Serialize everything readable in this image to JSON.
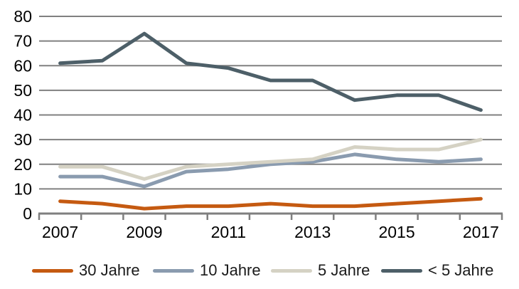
{
  "chart_data": {
    "type": "line",
    "title": "",
    "categories": [
      "2007",
      "2008",
      "2009",
      "2010",
      "2011",
      "2012",
      "2013",
      "2014",
      "2015",
      "2016",
      "2017"
    ],
    "x_axis_labels_shown": [
      "2007",
      "2009",
      "2011",
      "2013",
      "2015",
      "2017"
    ],
    "series": [
      {
        "name": "30 Jahre",
        "color": "#C55A11",
        "values": [
          5,
          4,
          2,
          3,
          3,
          4,
          3,
          3,
          4,
          5,
          6
        ]
      },
      {
        "name": "10 Jahre",
        "color": "#8A9BAF",
        "values": [
          15,
          15,
          11,
          17,
          18,
          20,
          21,
          24,
          22,
          21,
          22
        ]
      },
      {
        "name": "5 Jahre",
        "color": "#D5D2C4",
        "values": [
          19,
          19,
          14,
          19,
          20,
          21,
          22,
          27,
          26,
          26,
          30
        ]
      },
      {
        "name": "< 5 Jahre",
        "color": "#4D5F68",
        "values": [
          61,
          62,
          73,
          61,
          59,
          54,
          54,
          46,
          48,
          48,
          42
        ]
      }
    ],
    "ylim": [
      0,
      80
    ],
    "y_ticks": [
      0,
      10,
      20,
      30,
      40,
      50,
      60,
      70,
      80
    ],
    "grid": "horizontal",
    "legend_position": "bottom",
    "grid_color": "#808080",
    "axis_color": "#7F7F7F",
    "text_color": "#000000",
    "background": "#FFFFFF"
  }
}
